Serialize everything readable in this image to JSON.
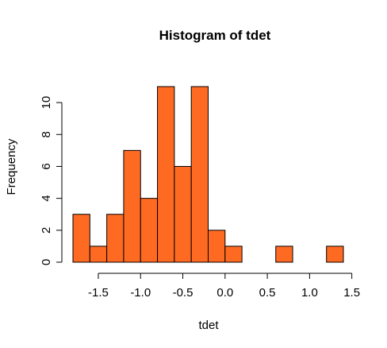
{
  "chart_data": {
    "type": "bar",
    "title": "Histogram of tdet",
    "xlabel": "tdet",
    "ylabel": "Frequency",
    "bin_edges": [
      -1.8,
      -1.6,
      -1.4,
      -1.2,
      -1.0,
      -0.8,
      -0.6,
      -0.4,
      -0.2,
      0.0,
      0.2,
      0.4,
      0.6,
      0.8,
      1.0,
      1.2,
      1.4
    ],
    "values": [
      3,
      1,
      3,
      7,
      4,
      11,
      6,
      11,
      2,
      1,
      0,
      0,
      1,
      0,
      0,
      1
    ],
    "xlim": [
      -1.8,
      1.4
    ],
    "ylim": [
      0,
      11
    ],
    "x_ticks": [
      -1.5,
      -1.0,
      -0.5,
      0.0,
      0.5,
      1.0,
      1.5
    ],
    "x_tick_labels": [
      "-1.5",
      "-1.0",
      "-0.5",
      "0.0",
      "0.5",
      "1.0",
      "1.5"
    ],
    "y_ticks": [
      0,
      2,
      4,
      6,
      8,
      10
    ],
    "y_tick_labels": [
      "0",
      "2",
      "4",
      "6",
      "8",
      "10"
    ],
    "bar_color": "#ff6a22",
    "grid": false
  }
}
